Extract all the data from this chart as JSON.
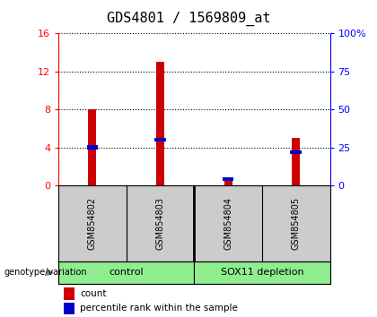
{
  "title": "GDS4801 / 1569809_at",
  "samples": [
    "GSM854802",
    "GSM854803",
    "GSM854804",
    "GSM854805"
  ],
  "count_values": [
    8.0,
    13.0,
    0.75,
    5.0
  ],
  "percentile_values": [
    25,
    30,
    4,
    22
  ],
  "ylim_left": [
    0,
    16
  ],
  "ylim_right": [
    0,
    100
  ],
  "yticks_left": [
    0,
    4,
    8,
    12,
    16
  ],
  "yticks_right": [
    0,
    25,
    50,
    75,
    100
  ],
  "bar_color": "#CC0000",
  "percentile_color": "#0000CC",
  "label_area_color": "#CCCCCC",
  "group_area_color": "#90EE90",
  "title_fontsize": 11,
  "tick_fontsize": 8,
  "bar_width": 0.12
}
